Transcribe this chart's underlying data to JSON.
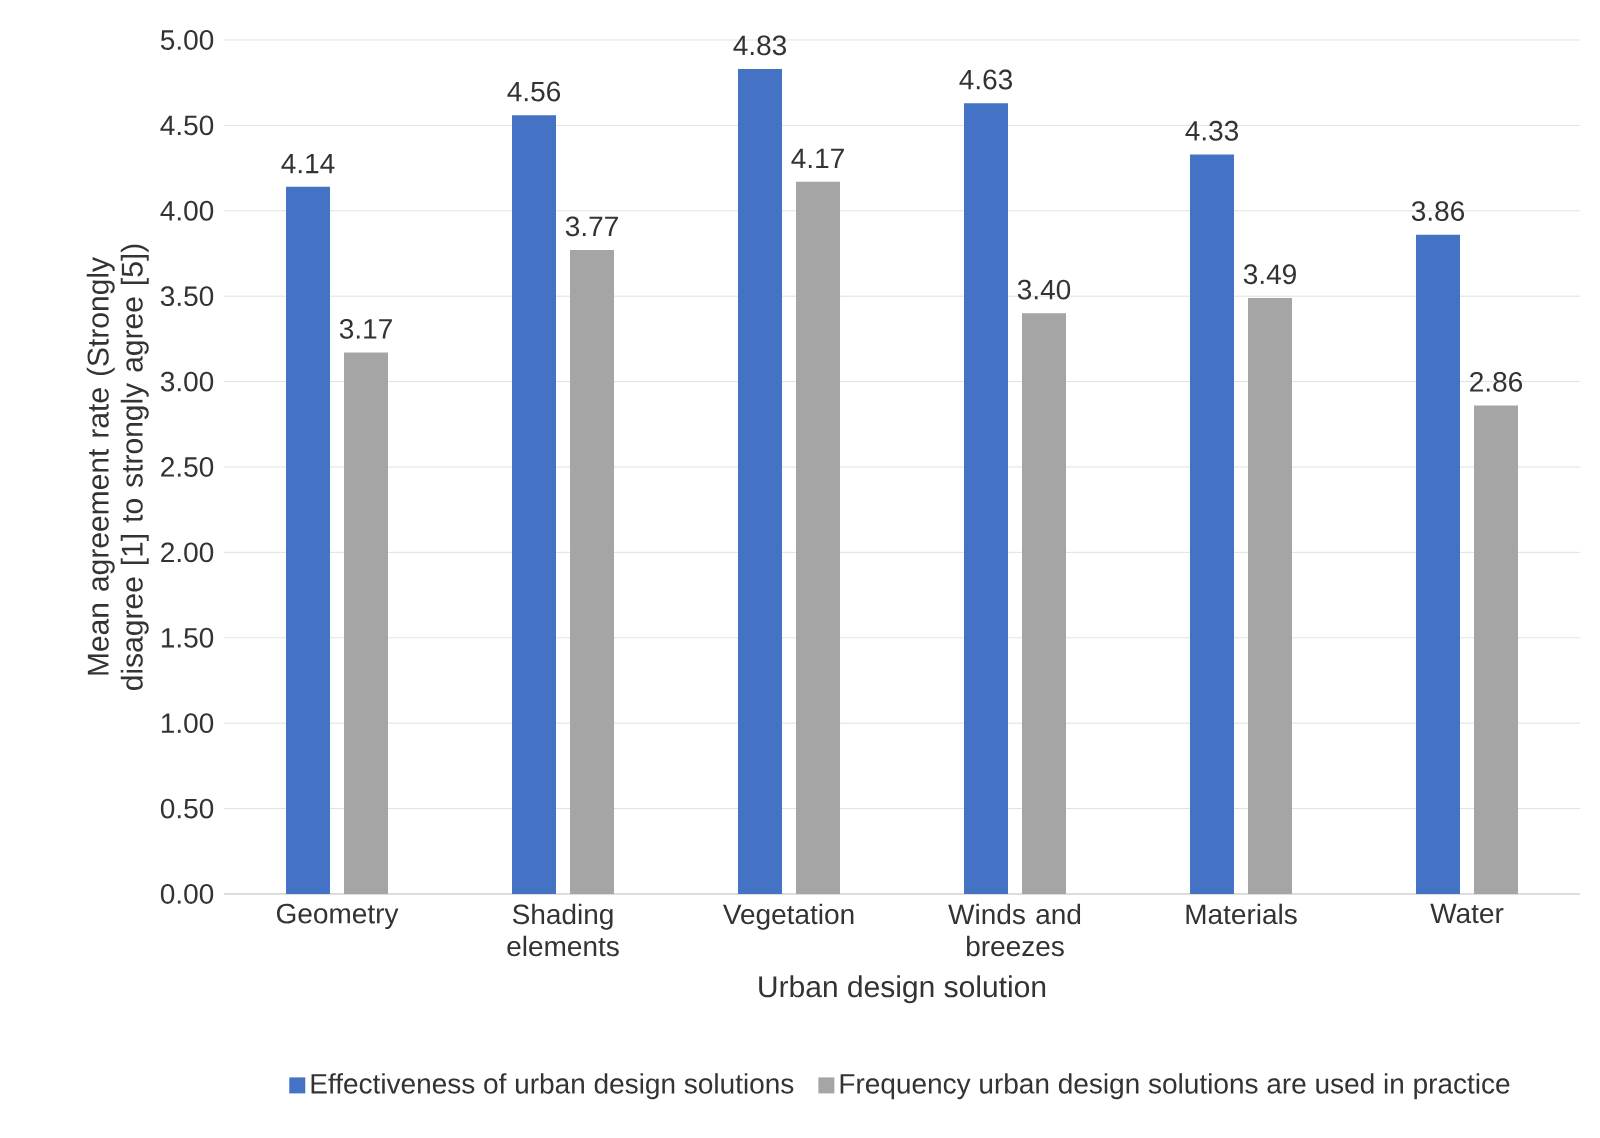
{
  "chart_data": {
    "type": "bar",
    "xlabel": "Urban design solution",
    "ylabel": "Mean agreement rate (Strongly disagree [1] to strongly agree [5])",
    "categories": [
      "Geometry",
      "Shading elements",
      "Vegetation",
      "Winds and breezes",
      "Materials",
      "Water"
    ],
    "series": [
      {
        "name": "Effectiveness of urban design solutions",
        "color": "#4472c4",
        "values": [
          4.14,
          4.56,
          4.83,
          4.63,
          4.33,
          3.86
        ],
        "value_labels": [
          "4.14",
          "4.56",
          "4.83",
          "4.63",
          "4.33",
          "3.86"
        ]
      },
      {
        "name": "Frequency urban design solutions are used in practice",
        "color": "#a5a5a5",
        "values": [
          3.17,
          3.77,
          4.17,
          3.4,
          3.49,
          2.86
        ],
        "value_labels": [
          "3.17",
          "3.77",
          "4.17",
          "3.40",
          "3.49",
          "2.86"
        ]
      }
    ],
    "ylim": [
      0,
      5
    ],
    "yticks": [
      {
        "value": 0,
        "label": "0.00"
      },
      {
        "value": 0.5,
        "label": "0.50"
      },
      {
        "value": 1,
        "label": "1.00"
      },
      {
        "value": 1.5,
        "label": "1.50"
      },
      {
        "value": 2,
        "label": "2.00"
      },
      {
        "value": 2.5,
        "label": "2.50"
      },
      {
        "value": 3,
        "label": "3.00"
      },
      {
        "value": 3.5,
        "label": "3.50"
      },
      {
        "value": 4,
        "label": "4.00"
      },
      {
        "value": 4.5,
        "label": "4.50"
      },
      {
        "value": 5,
        "label": "5.00"
      }
    ],
    "grid": "y",
    "legend": "bottom"
  }
}
